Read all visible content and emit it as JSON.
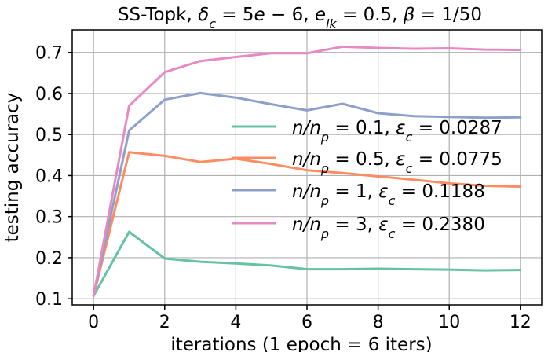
{
  "chart_data": {
    "type": "line",
    "title": "SS-Topk, δ_c = 5e − 6, e_lk = 0.5, β = 1/50",
    "xlabel": "iterations (1 epoch = 6 iters)",
    "ylabel": "testing accuracy",
    "xlim": [
      -0.6,
      12.6
    ],
    "ylim": [
      0.085,
      0.755
    ],
    "xticks": [
      0,
      2,
      4,
      6,
      8,
      10,
      12
    ],
    "yticks": [
      0.1,
      0.2,
      0.3,
      0.4,
      0.5,
      0.6,
      0.7
    ],
    "xtick_labels": [
      "0",
      "2",
      "4",
      "6",
      "8",
      "10",
      "12"
    ],
    "ytick_labels": [
      "0.1",
      "0.2",
      "0.3",
      "0.4",
      "0.5",
      "0.6",
      "0.7"
    ],
    "grid": true,
    "legend_position": "right",
    "x": [
      0,
      1,
      2,
      3,
      4,
      5,
      6,
      7,
      8,
      9,
      10,
      11,
      12
    ],
    "series": [
      {
        "name": "n/n_p = 0.1, ε_c = 0.0287",
        "color": "#66c2a5",
        "values": [
          0.107,
          0.263,
          0.198,
          0.19,
          0.186,
          0.181,
          0.172,
          0.172,
          0.173,
          0.172,
          0.171,
          0.169,
          0.17
        ]
      },
      {
        "name": "n/n_p = 0.5, ε_c = 0.0775",
        "color": "#fc8d62",
        "values": [
          0.107,
          0.457,
          0.448,
          0.433,
          0.441,
          0.428,
          0.413,
          0.406,
          0.398,
          0.39,
          0.381,
          0.375,
          0.373
        ]
      },
      {
        "name": "n/n_p = 1, ε_c = 0.1188",
        "color": "#8da0cb",
        "values": [
          0.107,
          0.51,
          0.585,
          0.601,
          0.59,
          0.574,
          0.559,
          0.575,
          0.552,
          0.545,
          0.543,
          0.541,
          0.542
        ]
      },
      {
        "name": "n/n_p = 3, ε_c = 0.2380",
        "color": "#e78ac3",
        "values": [
          0.107,
          0.57,
          0.652,
          0.679,
          0.689,
          0.698,
          0.698,
          0.714,
          0.711,
          0.709,
          0.71,
          0.707,
          0.706
        ]
      }
    ]
  }
}
